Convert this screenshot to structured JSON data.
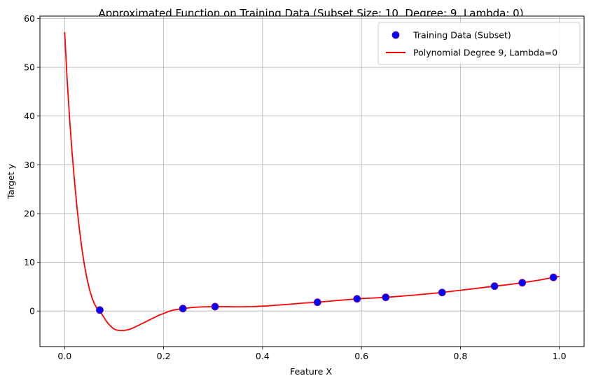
{
  "chart_data": {
    "type": "scatter",
    "title": "Approximated Function on Training Data (Subset Size: 10, Degree: 9, Lambda: 0)",
    "xlabel": "Feature X",
    "ylabel": "Target y",
    "xlim": [
      -0.05,
      1.05
    ],
    "ylim": [
      -7.3,
      60.5
    ],
    "xticks": [
      0.0,
      0.2,
      0.4,
      0.6,
      0.8,
      1.0
    ],
    "xtick_labels": [
      "0.0",
      "0.2",
      "0.4",
      "0.6",
      "0.8",
      "1.0"
    ],
    "yticks": [
      0,
      10,
      20,
      30,
      40,
      50,
      60
    ],
    "ytick_labels": [
      "0",
      "10",
      "20",
      "30",
      "40",
      "50",
      "60"
    ],
    "grid": true,
    "legend_position": "top-right",
    "series": [
      {
        "name": "Training Data (Subset)",
        "kind": "scatter",
        "color": "#0000ff",
        "edge_color": "#800080",
        "points": [
          {
            "x": 0.071,
            "y": 0.2
          },
          {
            "x": 0.239,
            "y": 0.5
          },
          {
            "x": 0.304,
            "y": 0.9
          },
          {
            "x": 0.511,
            "y": 1.8
          },
          {
            "x": 0.591,
            "y": 2.5
          },
          {
            "x": 0.649,
            "y": 2.8
          },
          {
            "x": 0.763,
            "y": 3.8
          },
          {
            "x": 0.869,
            "y": 5.1
          },
          {
            "x": 0.925,
            "y": 5.8
          },
          {
            "x": 0.988,
            "y": 6.9
          }
        ]
      },
      {
        "name": "Polynomial Degree 9, Lambda=0",
        "kind": "line",
        "color": "#ff0000",
        "points": [
          {
            "x": 0.0,
            "y": 57.2
          },
          {
            "x": 0.005,
            "y": 47.5
          },
          {
            "x": 0.01,
            "y": 39.5
          },
          {
            "x": 0.015,
            "y": 32.5
          },
          {
            "x": 0.02,
            "y": 26.5
          },
          {
            "x": 0.025,
            "y": 21.2
          },
          {
            "x": 0.03,
            "y": 16.6
          },
          {
            "x": 0.035,
            "y": 12.7
          },
          {
            "x": 0.04,
            "y": 9.4
          },
          {
            "x": 0.045,
            "y": 6.7
          },
          {
            "x": 0.05,
            "y": 4.5
          },
          {
            "x": 0.055,
            "y": 2.8
          },
          {
            "x": 0.06,
            "y": 1.5
          },
          {
            "x": 0.065,
            "y": 0.6
          },
          {
            "x": 0.071,
            "y": 0.2
          },
          {
            "x": 0.075,
            "y": -0.6
          },
          {
            "x": 0.08,
            "y": -1.4
          },
          {
            "x": 0.085,
            "y": -2.2
          },
          {
            "x": 0.09,
            "y": -2.8
          },
          {
            "x": 0.095,
            "y": -3.3
          },
          {
            "x": 0.1,
            "y": -3.7
          },
          {
            "x": 0.105,
            "y": -3.9
          },
          {
            "x": 0.11,
            "y": -4.0
          },
          {
            "x": 0.115,
            "y": -4.0
          },
          {
            "x": 0.12,
            "y": -4.0
          },
          {
            "x": 0.13,
            "y": -3.8
          },
          {
            "x": 0.14,
            "y": -3.4
          },
          {
            "x": 0.15,
            "y": -2.9
          },
          {
            "x": 0.16,
            "y": -2.4
          },
          {
            "x": 0.17,
            "y": -1.9
          },
          {
            "x": 0.18,
            "y": -1.4
          },
          {
            "x": 0.19,
            "y": -0.9
          },
          {
            "x": 0.2,
            "y": -0.5
          },
          {
            "x": 0.21,
            "y": -0.1
          },
          {
            "x": 0.22,
            "y": 0.2
          },
          {
            "x": 0.239,
            "y": 0.5
          },
          {
            "x": 0.26,
            "y": 0.75
          },
          {
            "x": 0.28,
            "y": 0.85
          },
          {
            "x": 0.304,
            "y": 0.9
          },
          {
            "x": 0.33,
            "y": 0.88
          },
          {
            "x": 0.35,
            "y": 0.85
          },
          {
            "x": 0.38,
            "y": 0.9
          },
          {
            "x": 0.41,
            "y": 1.05
          },
          {
            "x": 0.45,
            "y": 1.35
          },
          {
            "x": 0.48,
            "y": 1.6
          },
          {
            "x": 0.511,
            "y": 1.8
          },
          {
            "x": 0.55,
            "y": 2.15
          },
          {
            "x": 0.591,
            "y": 2.5
          },
          {
            "x": 0.62,
            "y": 2.65
          },
          {
            "x": 0.649,
            "y": 2.8
          },
          {
            "x": 0.7,
            "y": 3.2
          },
          {
            "x": 0.763,
            "y": 3.8
          },
          {
            "x": 0.82,
            "y": 4.5
          },
          {
            "x": 0.869,
            "y": 5.1
          },
          {
            "x": 0.9,
            "y": 5.45
          },
          {
            "x": 0.925,
            "y": 5.8
          },
          {
            "x": 0.96,
            "y": 6.35
          },
          {
            "x": 0.988,
            "y": 6.9
          },
          {
            "x": 1.0,
            "y": 7.1
          }
        ]
      }
    ]
  }
}
